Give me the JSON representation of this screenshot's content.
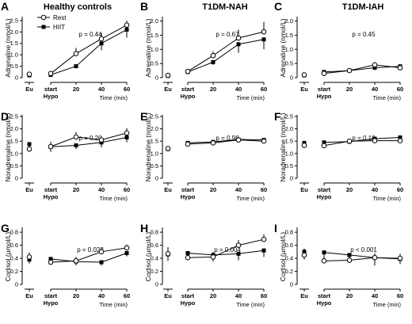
{
  "colors": {
    "ink": "#000000",
    "rest_fill": "#ffffff",
    "hiit_fill": "#000000"
  },
  "column_titles": [
    "Healthy controls",
    "T1DM-NAH",
    "T1DM-IAH"
  ],
  "legend": {
    "rest": "Rest",
    "hiit": "HIIT"
  },
  "x_axis": {
    "eu_label": "Eu",
    "start_label": "start",
    "hypo_label": "Hypo",
    "tick_labels": [
      "20",
      "40",
      "60"
    ],
    "title": "Time (min)"
  },
  "chart_data": [
    {
      "panel": "A",
      "type": "line",
      "ylabel": "Adrenaline (nmol/L)",
      "yticks": [
        "0",
        "0.5",
        "1.0",
        "1.5",
        "2.0",
        "2.5"
      ],
      "ylim": [
        0,
        2.6
      ],
      "p_value": "p = 0.44",
      "x": [
        "Eu",
        "start",
        "20",
        "40",
        "60"
      ],
      "series": [
        {
          "name": "Rest",
          "values": [
            0.15,
            0.18,
            1.05,
            1.7,
            2.3
          ],
          "errors": [
            0.05,
            0.05,
            0.25,
            0.25,
            0.2
          ]
        },
        {
          "name": "HIIT",
          "values": [
            0.1,
            0.12,
            0.5,
            1.5,
            2.1
          ],
          "errors": [
            0.05,
            0.05,
            0.08,
            0.3,
            0.35
          ]
        }
      ]
    },
    {
      "panel": "B",
      "type": "line",
      "ylabel": "Adrenaline (nmol/L)",
      "yticks": [
        "0",
        "0.5",
        "1.0",
        "1.5",
        "2.0"
      ],
      "ylim": [
        0,
        2.1
      ],
      "p_value": "p = 0.67",
      "x": [
        "Eu",
        "start",
        "20",
        "40",
        "60"
      ],
      "series": [
        {
          "name": "Rest",
          "values": [
            0.08,
            0.22,
            0.78,
            1.4,
            1.62
          ],
          "errors": [
            0.03,
            0.04,
            0.15,
            0.3,
            0.35
          ]
        },
        {
          "name": "HIIT",
          "values": [
            0.06,
            0.2,
            0.55,
            1.18,
            1.35
          ],
          "errors": [
            0.03,
            0.04,
            0.1,
            0.3,
            0.35
          ]
        }
      ]
    },
    {
      "panel": "C",
      "type": "line",
      "ylabel": "Adrenaline (nmol/L)",
      "yticks": [
        "0",
        "0.5",
        "1.0",
        "1.5",
        "2.0"
      ],
      "ylim": [
        0,
        2.1
      ],
      "p_value": "p = 0.45",
      "x": [
        "Eu",
        "start",
        "20",
        "40",
        "60"
      ],
      "series": [
        {
          "name": "Rest",
          "values": [
            0.1,
            0.15,
            0.25,
            0.45,
            0.35
          ],
          "errors": [
            0.04,
            0.05,
            0.06,
            0.1,
            0.1
          ]
        },
        {
          "name": "HIIT",
          "values": [
            0.08,
            0.2,
            0.25,
            0.35,
            0.4
          ],
          "errors": [
            0.04,
            0.05,
            0.06,
            0.08,
            0.08
          ]
        }
      ]
    },
    {
      "panel": "D",
      "type": "line",
      "ylabel": "Noradrenaline (nmol/L)",
      "yticks": [
        "0",
        "0.5",
        "1.0",
        "1.5",
        "2.0",
        "2.5"
      ],
      "ylim": [
        0,
        2.5
      ],
      "p_value": "p = 0.20",
      "x": [
        "Eu",
        "start",
        "20",
        "40",
        "60"
      ],
      "series": [
        {
          "name": "Rest",
          "values": [
            1.18,
            1.28,
            1.67,
            1.55,
            1.83
          ],
          "errors": [
            0.18,
            0.2,
            0.2,
            0.15,
            0.2
          ]
        },
        {
          "name": "HIIT",
          "values": [
            1.38,
            1.27,
            1.33,
            1.45,
            1.65
          ],
          "errors": [
            0.15,
            0.2,
            0.15,
            0.2,
            0.2
          ]
        }
      ]
    },
    {
      "panel": "E",
      "type": "line",
      "ylabel": "Noradrenaline (nmol/L)",
      "yticks": [
        "0",
        "0.5",
        "1.0",
        "1.5",
        "2.0",
        "2.5"
      ],
      "ylim": [
        0,
        2.5
      ],
      "p_value": "p = 0.98",
      "x": [
        "Eu",
        "start",
        "20",
        "40",
        "60"
      ],
      "series": [
        {
          "name": "Rest",
          "values": [
            1.2,
            1.38,
            1.43,
            1.55,
            1.5
          ],
          "errors": [
            0.08,
            0.08,
            0.08,
            0.06,
            0.06
          ]
        },
        {
          "name": "HIIT",
          "values": [
            1.18,
            1.43,
            1.47,
            1.57,
            1.55
          ],
          "errors": [
            0.08,
            0.08,
            0.06,
            0.06,
            0.06
          ]
        }
      ]
    },
    {
      "panel": "F",
      "type": "line",
      "ylabel": "Noradrenaline (nmol/L)",
      "yticks": [
        "0",
        "0.5",
        "1.0",
        "1.5",
        "2.0",
        "2.5"
      ],
      "ylim": [
        0,
        2.5
      ],
      "p_value": "p = 0.10",
      "x": [
        "Eu",
        "start",
        "20",
        "40",
        "60"
      ],
      "series": [
        {
          "name": "Rest",
          "values": [
            1.33,
            1.32,
            1.5,
            1.52,
            1.52
          ],
          "errors": [
            0.1,
            0.1,
            0.1,
            0.15,
            0.1
          ]
        },
        {
          "name": "HIIT",
          "values": [
            1.43,
            1.45,
            1.48,
            1.6,
            1.65
          ],
          "errors": [
            0.1,
            0.1,
            0.1,
            0.12,
            0.1
          ]
        }
      ]
    },
    {
      "panel": "G",
      "type": "line",
      "ylabel": "Cortisol (μmol/L)",
      "yticks": [
        "0",
        "0.2",
        "0.4",
        "0.6",
        "0.8"
      ],
      "ylim": [
        0,
        0.85
      ],
      "p_value": "p = 0.022",
      "x": [
        "Eu",
        "start",
        "20",
        "40",
        "60"
      ],
      "series": [
        {
          "name": "Rest",
          "values": [
            0.42,
            0.34,
            0.36,
            0.5,
            0.56
          ],
          "errors": [
            0.07,
            0.06,
            0.06,
            0.06,
            0.05
          ]
        },
        {
          "name": "HIIT",
          "values": [
            0.38,
            0.39,
            0.35,
            0.34,
            0.48
          ],
          "errors": [
            0.06,
            0.06,
            0.06,
            0.05,
            0.05
          ]
        }
      ]
    },
    {
      "panel": "H",
      "type": "line",
      "ylabel": "Cortisol (μmol/L)",
      "yticks": [
        "0",
        "0.2",
        "0.4",
        "0.6",
        "0.8"
      ],
      "ylim": [
        0,
        0.85
      ],
      "p_value": "p = 0.004",
      "x": [
        "Eu",
        "start",
        "20",
        "40",
        "60"
      ],
      "series": [
        {
          "name": "Rest",
          "values": [
            0.47,
            0.41,
            0.42,
            0.6,
            0.69
          ],
          "errors": [
            0.1,
            0.08,
            0.08,
            0.08,
            0.08
          ]
        },
        {
          "name": "HIIT",
          "values": [
            0.46,
            0.48,
            0.45,
            0.47,
            0.52
          ],
          "errors": [
            0.1,
            0.1,
            0.1,
            0.1,
            0.1
          ]
        }
      ]
    },
    {
      "panel": "I",
      "type": "line",
      "ylabel": "Cortisol (μmol/L)",
      "yticks": [
        "0",
        "0.2",
        "0.4",
        "0.6",
        "0.8"
      ],
      "ylim": [
        0,
        0.85
      ],
      "p_value": "p < 0.001",
      "x": [
        "Eu",
        "start",
        "20",
        "40",
        "60"
      ],
      "series": [
        {
          "name": "Rest",
          "values": [
            0.45,
            0.36,
            0.37,
            0.41,
            0.4
          ],
          "errors": [
            0.1,
            0.08,
            0.06,
            0.07,
            0.07
          ]
        },
        {
          "name": "HIIT",
          "values": [
            0.5,
            0.49,
            0.45,
            0.41,
            0.39
          ],
          "errors": [
            0.12,
            0.12,
            0.12,
            0.12,
            0.08
          ]
        }
      ]
    }
  ]
}
